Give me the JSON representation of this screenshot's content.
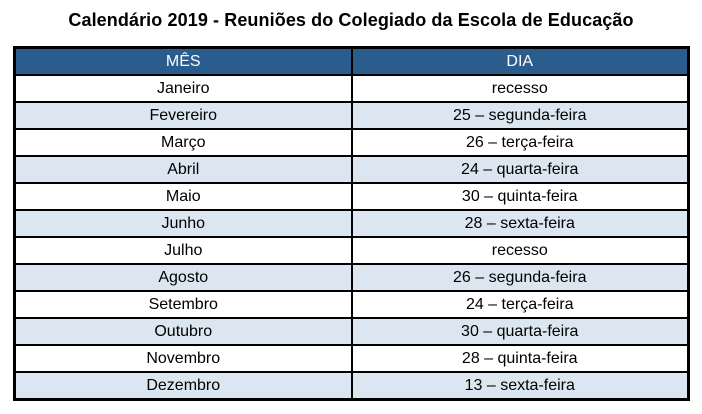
{
  "title": "Calendário 2019 - Reuniões do Colegiado da Escola de Educação",
  "table": {
    "headers": [
      "MÊS",
      "DIA"
    ],
    "rows": [
      {
        "month": "Janeiro",
        "day": "recesso"
      },
      {
        "month": "Fevereiro",
        "day": "25 – segunda-feira"
      },
      {
        "month": "Março",
        "day": "26 – terça-feira"
      },
      {
        "month": "Abril",
        "day": "24 – quarta-feira"
      },
      {
        "month": "Maio",
        "day": "30 – quinta-feira"
      },
      {
        "month": "Junho",
        "day": "28 – sexta-feira"
      },
      {
        "month": "Julho",
        "day": "recesso"
      },
      {
        "month": "Agosto",
        "day": "26 – segunda-feira"
      },
      {
        "month": "Setembro",
        "day": "24 – terça-feira"
      },
      {
        "month": "Outubro",
        "day": "30 – quarta-feira"
      },
      {
        "month": "Novembro",
        "day": "28 – quinta-feira"
      },
      {
        "month": "Dezembro",
        "day": "13 – sexta-feira"
      }
    ]
  },
  "colors": {
    "header_bg": "#2b5c8e",
    "header_text": "#ffffff",
    "row_alt_bg": "#dce6f1",
    "border": "#000000",
    "title_text": "#000000"
  }
}
